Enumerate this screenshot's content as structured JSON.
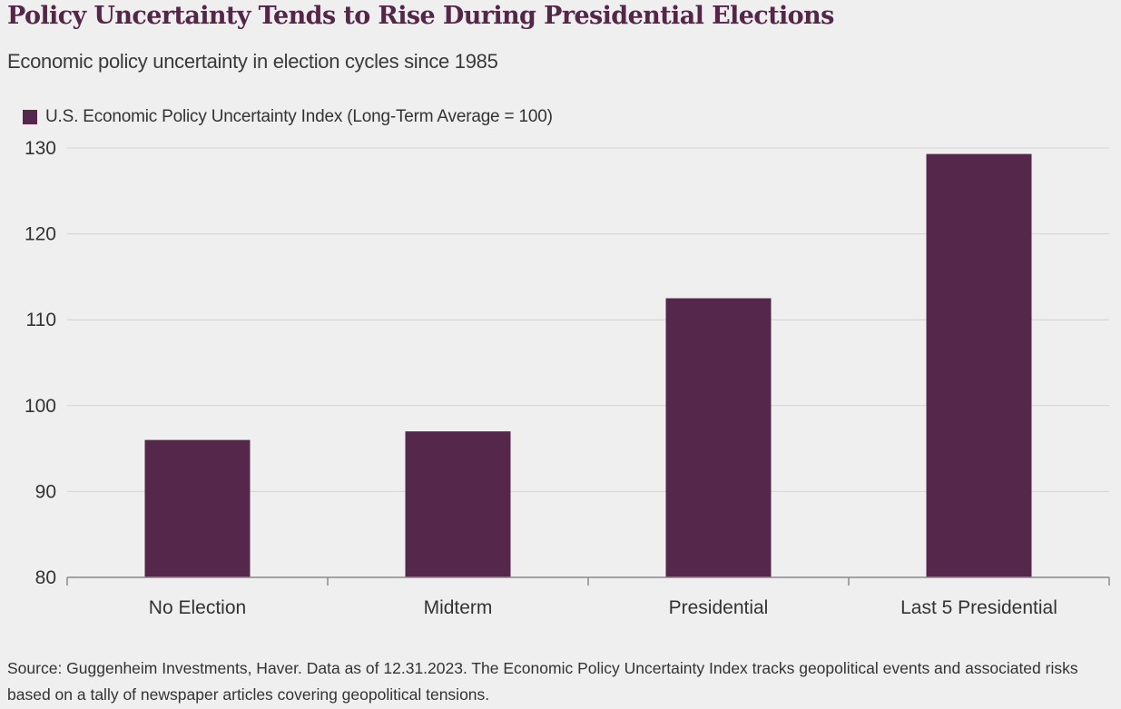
{
  "title": "Policy Uncertainty Tends to Rise During Presidential Elections",
  "subtitle": "Economic policy uncertainty in election cycles since 1985",
  "source": "Source: Guggenheim Investments, Haver. Data as of 12.31.2023. The Economic Policy Uncertainty Index tracks geopolitical events and associated risks based on a tally of newspaper articles covering geopolitical tensions.",
  "colors": {
    "bar": "#55284b",
    "grid": "#d4d4d4",
    "axis": "#8a8a8a",
    "title": "#542749"
  },
  "chart_data": {
    "type": "bar",
    "categories": [
      "No Election",
      "Midterm",
      "Presidential",
      "Last 5 Presidential"
    ],
    "series": [
      {
        "name": "U.S. Economic Policy Uncertainty Index (Long-Term Average = 100)",
        "values": [
          96,
          97,
          112.5,
          129.3
        ]
      }
    ],
    "yticks": [
      80,
      90,
      100,
      110,
      120,
      130
    ],
    "ylim": [
      80,
      130
    ],
    "grid": true,
    "legend": "top-left"
  }
}
